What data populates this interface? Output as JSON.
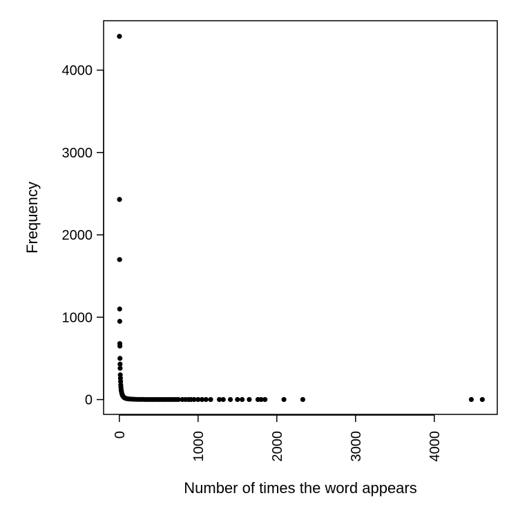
{
  "chart_data": {
    "type": "scatter",
    "title": "",
    "xlabel": "Number of times the word appears",
    "ylabel": "Frequency",
    "xlim": [
      -200,
      4800
    ],
    "ylim": [
      -180,
      4600
    ],
    "x_ticks": [
      0,
      1000,
      2000,
      3000,
      4000
    ],
    "y_ticks": [
      0,
      1000,
      2000,
      3000,
      4000
    ],
    "x_tick_labels": [
      "0",
      "1000",
      "2000",
      "3000",
      "4000"
    ],
    "y_tick_labels": [
      "0",
      "1000",
      "2000",
      "3000",
      "4000"
    ],
    "grid": false,
    "legend": "none",
    "marker_color": "#000000",
    "points": [
      [
        1,
        4410
      ],
      [
        2,
        2430
      ],
      [
        3,
        1700
      ],
      [
        4,
        1100
      ],
      [
        5,
        950
      ],
      [
        6,
        680
      ],
      [
        7,
        650
      ],
      [
        8,
        500
      ],
      [
        9,
        430
      ],
      [
        10,
        380
      ],
      [
        12,
        300
      ],
      [
        14,
        260
      ],
      [
        16,
        220
      ],
      [
        18,
        180
      ],
      [
        20,
        150
      ],
      [
        23,
        120
      ],
      [
        26,
        100
      ],
      [
        30,
        80
      ],
      [
        35,
        65
      ],
      [
        40,
        50
      ],
      [
        47,
        40
      ],
      [
        55,
        30
      ],
      [
        65,
        22
      ],
      [
        78,
        16
      ],
      [
        92,
        12
      ],
      [
        110,
        9
      ],
      [
        130,
        7
      ],
      [
        155,
        5
      ],
      [
        180,
        4
      ],
      [
        210,
        3
      ],
      [
        240,
        2
      ],
      [
        270,
        2
      ],
      [
        300,
        2
      ],
      [
        330,
        1
      ],
      [
        360,
        1
      ],
      [
        390,
        1
      ],
      [
        420,
        1
      ],
      [
        450,
        1
      ],
      [
        480,
        1
      ],
      [
        510,
        1
      ],
      [
        540,
        1
      ],
      [
        570,
        1
      ],
      [
        600,
        1
      ],
      [
        630,
        1
      ],
      [
        660,
        1
      ],
      [
        690,
        1
      ],
      [
        720,
        1
      ],
      [
        750,
        1
      ],
      [
        800,
        1
      ],
      [
        840,
        1
      ],
      [
        880,
        1
      ],
      [
        910,
        1
      ],
      [
        950,
        1
      ],
      [
        1000,
        1
      ],
      [
        1050,
        1
      ],
      [
        1100,
        1
      ],
      [
        1160,
        1
      ],
      [
        1270,
        1
      ],
      [
        1320,
        1
      ],
      [
        1410,
        1
      ],
      [
        1500,
        1
      ],
      [
        1560,
        1
      ],
      [
        1650,
        1
      ],
      [
        1760,
        1
      ],
      [
        1800,
        1
      ],
      [
        1850,
        1
      ],
      [
        2090,
        1
      ],
      [
        2330,
        1
      ],
      [
        4470,
        1
      ],
      [
        4610,
        1
      ]
    ]
  }
}
